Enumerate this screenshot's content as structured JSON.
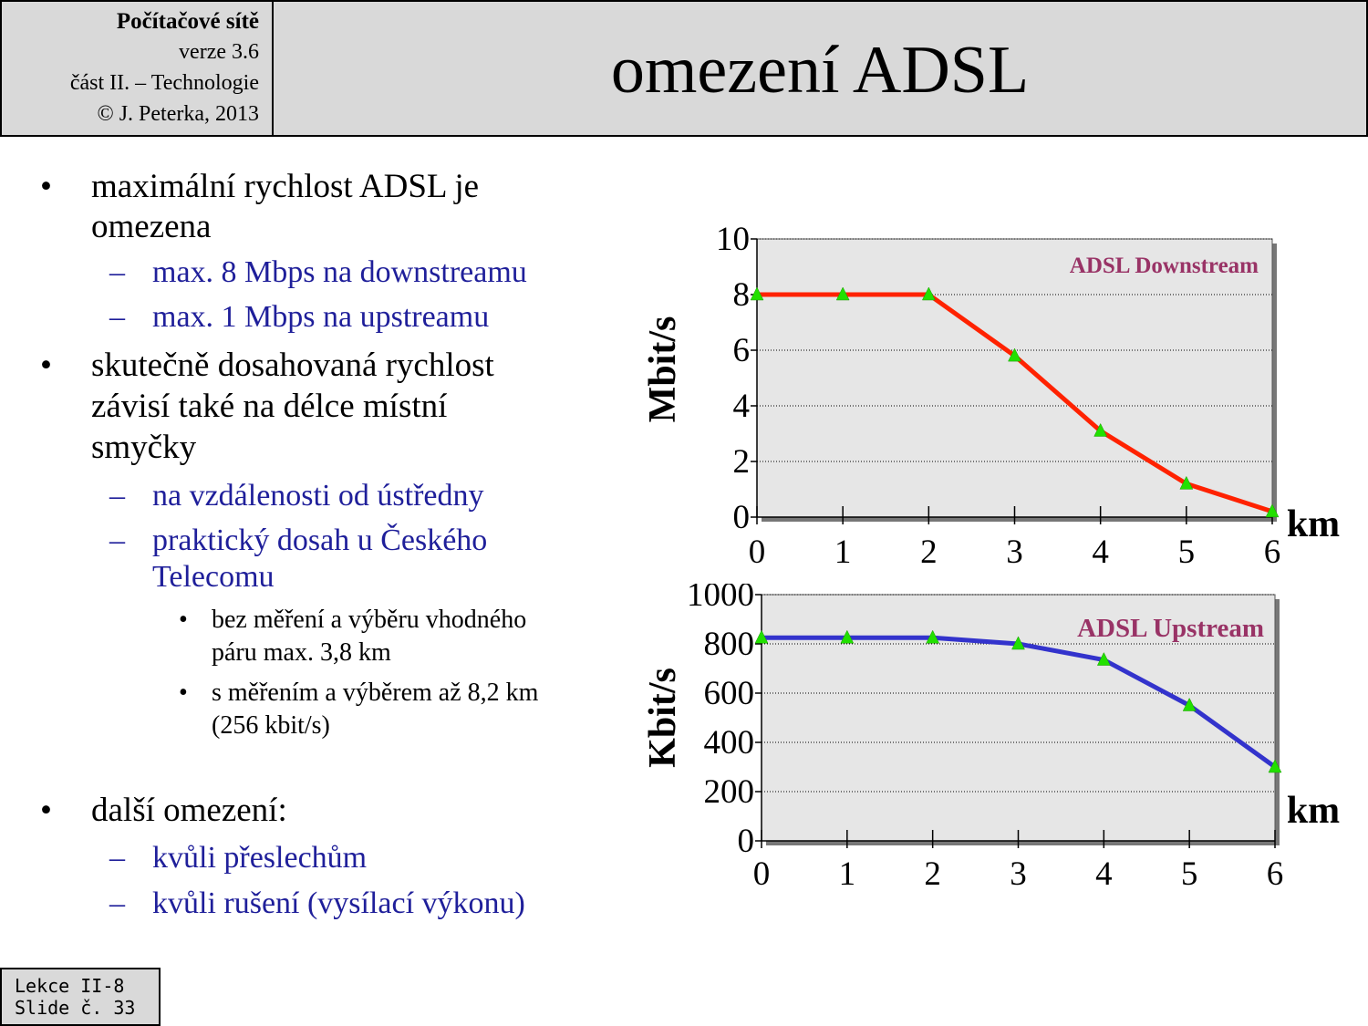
{
  "header": {
    "course": "Počítačové sítě",
    "version": "verze 3.6",
    "part": "část  II. – Technologie",
    "copyright": "© J. Peterka, 2013"
  },
  "title": "omezení ADSL",
  "bullets": {
    "b1": "maximální rychlost ADSL je",
    "b1b": "omezena",
    "b1_s1": "max. 8 Mbps na downstreamu",
    "b1_s2": "max. 1 Mbps na upstreamu",
    "b2a": "skutečně dosahovaná rychlost",
    "b2b": "závisí také na délce místní",
    "b2c": "smyčky",
    "b2_s1": "na vzdálenosti od ústředny",
    "b2_s2a": "praktický dosah u Českého",
    "b2_s2b": "Telecomu",
    "b2_s2_i1a": "bez měření a výběru vhodného",
    "b2_s2_i1b": "páru max. 3,8 km",
    "b2_s2_i2a": "s měřením a výběrem až 8,2 km",
    "b2_s2_i2b": "(256 kbit/s)",
    "b3": "další omezení:",
    "b3_s1": "kvůli přeslechům",
    "b3_s2": "kvůli rušení (vysílací výkonu)",
    "dot": "•",
    "dash": "–"
  },
  "footer": {
    "line1": "Lekce II-8",
    "line2": "Slide č. 33"
  },
  "chart_data": [
    {
      "type": "line",
      "title": "ADSL Downstream",
      "ylabel": "Mbit/s",
      "xlabel": "km",
      "x": [
        0,
        1,
        2,
        3,
        4,
        5,
        6
      ],
      "values": [
        8,
        8,
        8,
        5.8,
        3.1,
        1.2,
        0.2
      ],
      "xlim": [
        0,
        6
      ],
      "ylim": [
        0,
        10
      ],
      "yticks": [
        0,
        2,
        4,
        6,
        8,
        10
      ],
      "xticks": [
        0,
        1,
        2,
        3,
        4,
        5,
        6
      ],
      "grid": true,
      "line_color": "#ff2200",
      "marker_color": "#22e000",
      "title_color": "#993366",
      "plot_bg": "#e6e6e6"
    },
    {
      "type": "line",
      "title": "ADSL Upstream",
      "ylabel": "Kbit/s",
      "xlabel": "km",
      "x": [
        0,
        1,
        2,
        3,
        4,
        5,
        6
      ],
      "values": [
        825,
        825,
        825,
        800,
        735,
        550,
        300
      ],
      "xlim": [
        0,
        6
      ],
      "ylim": [
        0,
        1000
      ],
      "yticks": [
        0,
        200,
        400,
        600,
        800,
        1000
      ],
      "xticks": [
        0,
        1,
        2,
        3,
        4,
        5,
        6
      ],
      "grid": true,
      "line_color": "#3333cc",
      "marker_color": "#22e000",
      "title_color": "#993366",
      "plot_bg": "#e6e6e6"
    }
  ]
}
